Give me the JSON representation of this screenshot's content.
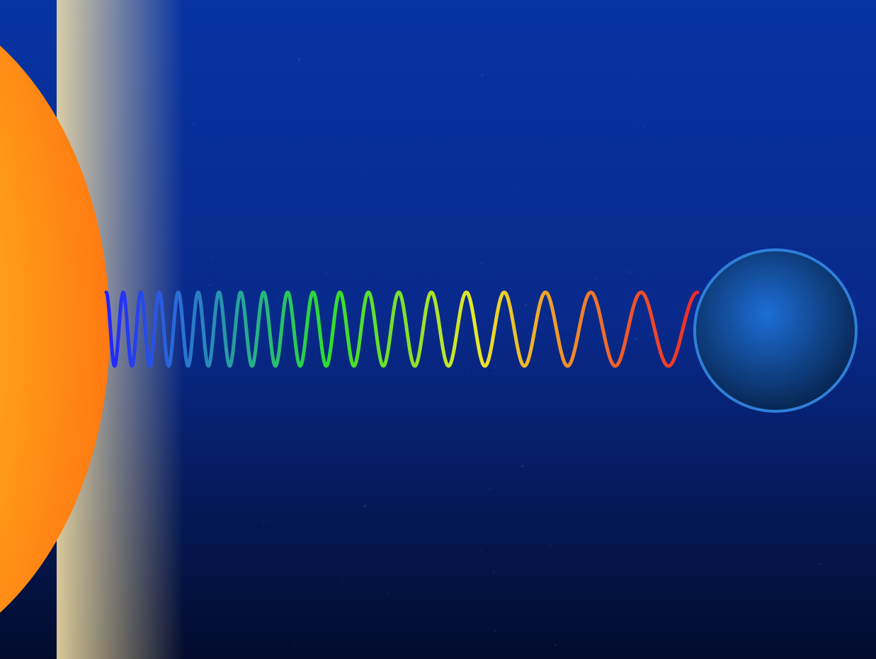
{
  "colors": {
    "space_top": "#0733a3",
    "space_mid": "#08298a",
    "space_bottom": "#020b2c",
    "star_core": "#fff200",
    "star_mid": "#ffc21f",
    "star_rim": "#ff7a12",
    "star_glow": "#ffe9a8",
    "planet_center": "#1d6ed6",
    "planet_edge": "#062048",
    "planet_ring": "#2f7fd8",
    "wave_colors": [
      "#2222ff",
      "#2b6fd6",
      "#26b08a",
      "#2dde2d",
      "#7ee02a",
      "#e8e82a",
      "#f0a02a",
      "#ef5a2a",
      "#ee2a2a"
    ]
  },
  "icons": {
    "source": "star-icon",
    "wave": "light-wave-icon",
    "target": "planet-icon"
  },
  "wave": {
    "cycles": 20,
    "wavelength_ratio": 3.6
  }
}
